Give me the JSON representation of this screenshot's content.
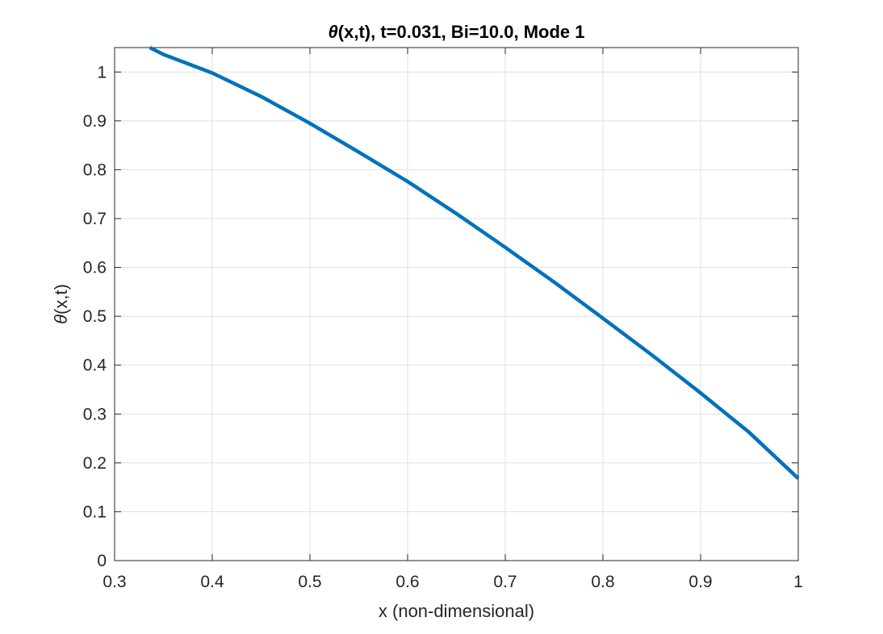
{
  "chart_data": {
    "type": "line",
    "title_prefix": "θ",
    "title_rest": "(x,t), t=0.031, Bi=10.0, Mode 1",
    "xlabel": "x (non-dimensional)",
    "ylabel_prefix": "θ",
    "ylabel_rest": "(x,t)",
    "xlim": [
      0.3,
      1.0
    ],
    "ylim": [
      0,
      1.05
    ],
    "xticks": [
      0.3,
      0.4,
      0.5,
      0.6,
      0.7,
      0.8,
      0.9,
      1.0
    ],
    "yticks": [
      0,
      0.1,
      0.2,
      0.3,
      0.4,
      0.5,
      0.6,
      0.7,
      0.8,
      0.9,
      1.0
    ],
    "xtick_labels": [
      "0.3",
      "0.4",
      "0.5",
      "0.6",
      "0.7",
      "0.8",
      "0.9",
      "1"
    ],
    "ytick_labels": [
      "0",
      "0.1",
      "0.2",
      "0.3",
      "0.4",
      "0.5",
      "0.6",
      "0.7",
      "0.8",
      "0.9",
      "1"
    ],
    "grid": true,
    "series": [
      {
        "color": "#0072BD",
        "x": [
          0.336,
          0.35,
          0.4,
          0.45,
          0.5,
          0.55,
          0.6,
          0.65,
          0.7,
          0.75,
          0.8,
          0.85,
          0.9,
          0.95,
          1.0
        ],
        "y": [
          1.05,
          1.036,
          0.998,
          0.95,
          0.895,
          0.836,
          0.776,
          0.71,
          0.641,
          0.57,
          0.496,
          0.421,
          0.343,
          0.262,
          0.168
        ]
      }
    ]
  }
}
